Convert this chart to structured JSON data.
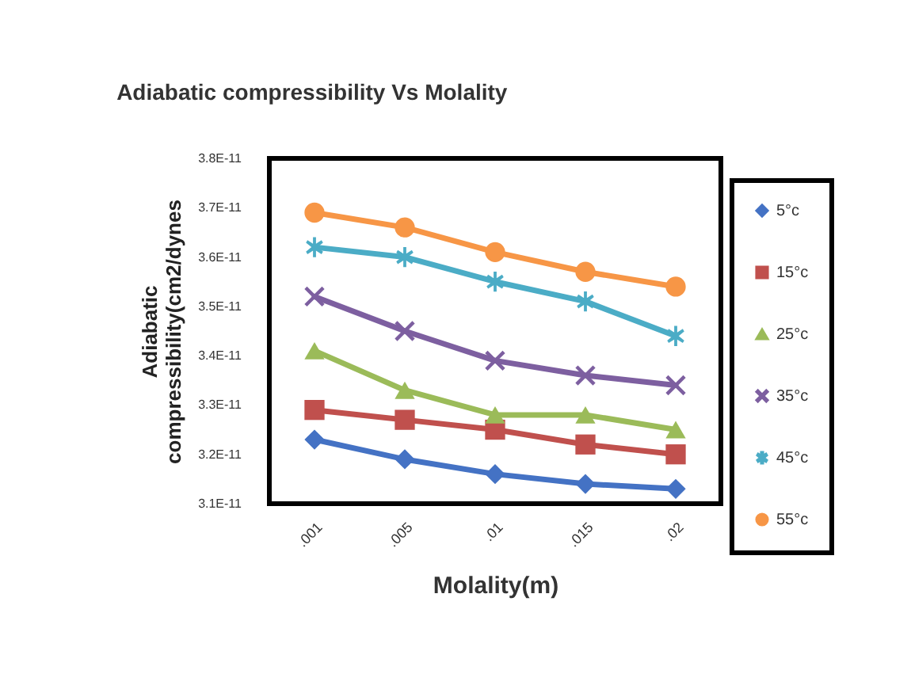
{
  "chart_data": {
    "type": "line",
    "title": "Adiabatic compressibility Vs Molality",
    "xlabel": "Molality(m)",
    "ylabel": "Adiabatic compressibility(cm2/dynes",
    "categories": [
      ".001",
      ".005",
      ".01",
      ".015",
      ".02"
    ],
    "series": [
      {
        "name": "5°c",
        "color": "#4472c4",
        "marker": "diamond",
        "values": [
          3.23e-11,
          3.19e-11,
          3.16e-11,
          3.14e-11,
          3.13e-11
        ]
      },
      {
        "name": "15°c",
        "color": "#c0504d",
        "marker": "square",
        "values": [
          3.29e-11,
          3.27e-11,
          3.25e-11,
          3.22e-11,
          3.2e-11
        ]
      },
      {
        "name": "25°c",
        "color": "#9bbb59",
        "marker": "triangle",
        "values": [
          3.41e-11,
          3.33e-11,
          3.28e-11,
          3.28e-11,
          3.25e-11
        ]
      },
      {
        "name": "35°c",
        "color": "#7d5fa0",
        "marker": "cross",
        "values": [
          3.52e-11,
          3.45e-11,
          3.39e-11,
          3.36e-11,
          3.34e-11
        ]
      },
      {
        "name": "45°c",
        "color": "#4bacc6",
        "marker": "star",
        "values": [
          3.62e-11,
          3.6e-11,
          3.55e-11,
          3.51e-11,
          3.44e-11
        ]
      },
      {
        "name": "55°c",
        "color": "#f79646",
        "marker": "circle",
        "values": [
          3.69e-11,
          3.66e-11,
          3.61e-11,
          3.57e-11,
          3.54e-11
        ]
      }
    ],
    "ylim": [
      3.1e-11,
      3.8e-11
    ],
    "yticks": [
      {
        "value": 3.1e-11,
        "label": "3.1E-11"
      },
      {
        "value": 3.2e-11,
        "label": "3.2E-11"
      },
      {
        "value": 3.3e-11,
        "label": "3.3E-11"
      },
      {
        "value": 3.4e-11,
        "label": "3.4E-11"
      },
      {
        "value": 3.5e-11,
        "label": "3.5E-11"
      },
      {
        "value": 3.6e-11,
        "label": "3.6E-11"
      },
      {
        "value": 3.7e-11,
        "label": "3.7E-11"
      },
      {
        "value": 3.8e-11,
        "label": "3.8E-11"
      }
    ],
    "legend": "right"
  }
}
